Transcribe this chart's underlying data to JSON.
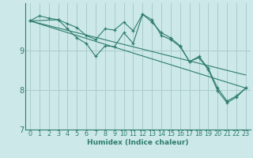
{
  "xlabel": "Humidex (Indice chaleur)",
  "bg_color": "#cce8e8",
  "grid_color": "#aacccc",
  "line_color": "#2e7d6e",
  "xlim": [
    -0.5,
    23.5
  ],
  "ylim": [
    7.0,
    10.2
  ],
  "yticks": [
    7,
    8,
    9
  ],
  "xticks": [
    0,
    1,
    2,
    3,
    4,
    5,
    6,
    7,
    8,
    9,
    10,
    11,
    12,
    13,
    14,
    15,
    16,
    17,
    18,
    19,
    20,
    21,
    22,
    23
  ],
  "series": [
    {
      "x": [
        0,
        1,
        2,
        3,
        4,
        5,
        6,
        7,
        8,
        9,
        10,
        11,
        12,
        13,
        14,
        15,
        16,
        17,
        18,
        19,
        20,
        21,
        22,
        23
      ],
      "y": [
        9.75,
        9.88,
        9.82,
        9.78,
        9.68,
        9.58,
        9.38,
        9.28,
        9.55,
        9.52,
        9.72,
        9.5,
        9.92,
        9.78,
        9.38,
        9.28,
        9.1,
        8.72,
        8.85,
        8.55,
        8.05,
        7.72,
        7.85,
        8.05
      ],
      "markers": true
    },
    {
      "x": [
        0,
        3,
        4,
        5,
        6,
        7,
        8,
        9,
        10,
        11,
        12,
        13,
        14,
        15,
        16,
        17,
        18,
        19,
        20,
        21,
        22,
        23
      ],
      "y": [
        9.75,
        9.78,
        9.55,
        9.32,
        9.18,
        8.85,
        9.12,
        9.1,
        9.45,
        9.18,
        9.92,
        9.72,
        9.45,
        9.32,
        9.12,
        8.72,
        8.82,
        8.52,
        7.98,
        7.68,
        7.82,
        8.05
      ],
      "markers": true
    },
    {
      "x": [
        0,
        23
      ],
      "y": [
        9.75,
        8.38
      ],
      "markers": false
    },
    {
      "x": [
        0,
        23
      ],
      "y": [
        9.75,
        8.05
      ],
      "markers": false
    }
  ]
}
